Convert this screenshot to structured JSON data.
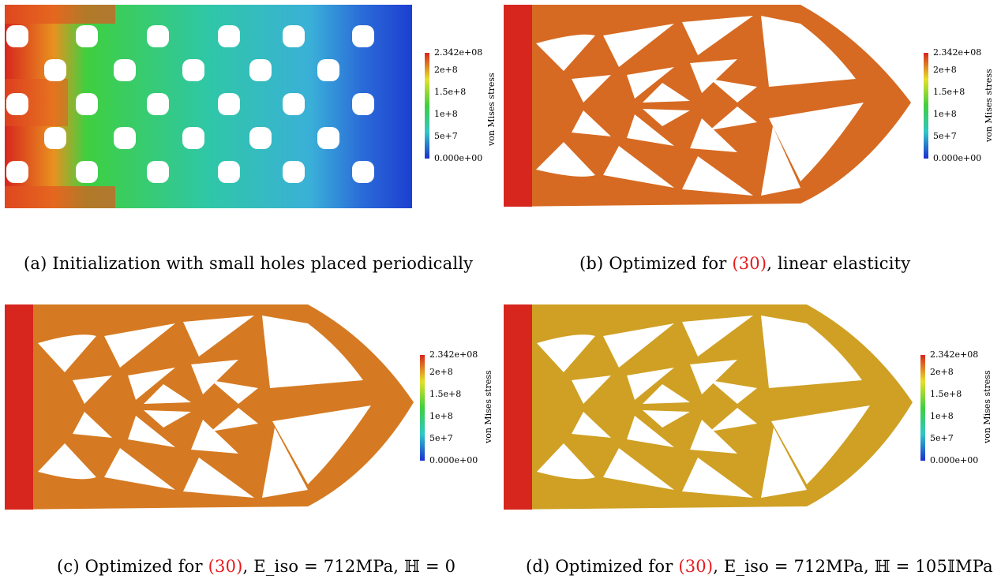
{
  "panels": [
    {
      "id": "a",
      "caption": {
        "label": "(a)",
        "text": "Initialization with small holes placed periodically"
      },
      "colorbar": {
        "title": "von Mises stress",
        "ticks": [
          "2.342e+08",
          "2e+8",
          "1.5e+8",
          "1e+8",
          "5e+7",
          "0.000e+00"
        ]
      }
    },
    {
      "id": "b",
      "caption": {
        "label": "(b)",
        "pre": "Optimized for ",
        "ref": "(30)",
        "post": ", linear elasticity"
      },
      "colorbar": {
        "title": "von Mises stress",
        "ticks": [
          "2.342e+08",
          "2e+8",
          "1.5e+8",
          "1e+8",
          "5e+7",
          "0.000e+00"
        ]
      }
    },
    {
      "id": "c",
      "caption": {
        "label": "(c)",
        "pre": "Optimized for ",
        "ref": "(30)",
        "post": ", E_iso = 712MPa, ℍ = 0"
      },
      "colorbar": {
        "title": "von Mises stress",
        "ticks": [
          "2.342e+08",
          "2e+8",
          "1.5e+8",
          "1e+8",
          "5e+7",
          "0.000e+00"
        ]
      }
    },
    {
      "id": "d",
      "caption": {
        "label": "(d)",
        "pre": "Optimized for ",
        "ref": "(30)",
        "post": ", E_iso = 712MPa, ℍ = 105𝕀MPa"
      },
      "colorbar": {
        "title": "von Mises stress",
        "ticks": [
          "2.342e+08",
          "2e+8",
          "1.5e+8",
          "1e+8",
          "5e+7",
          "0.000e+00"
        ]
      }
    }
  ],
  "colors": {
    "red": "#d7261e",
    "orange": "#e87b21",
    "yellow": "#c9c92a",
    "green": "#3fcf3f",
    "cyan": "#2fc7c7",
    "blue": "#1d3fd0"
  }
}
